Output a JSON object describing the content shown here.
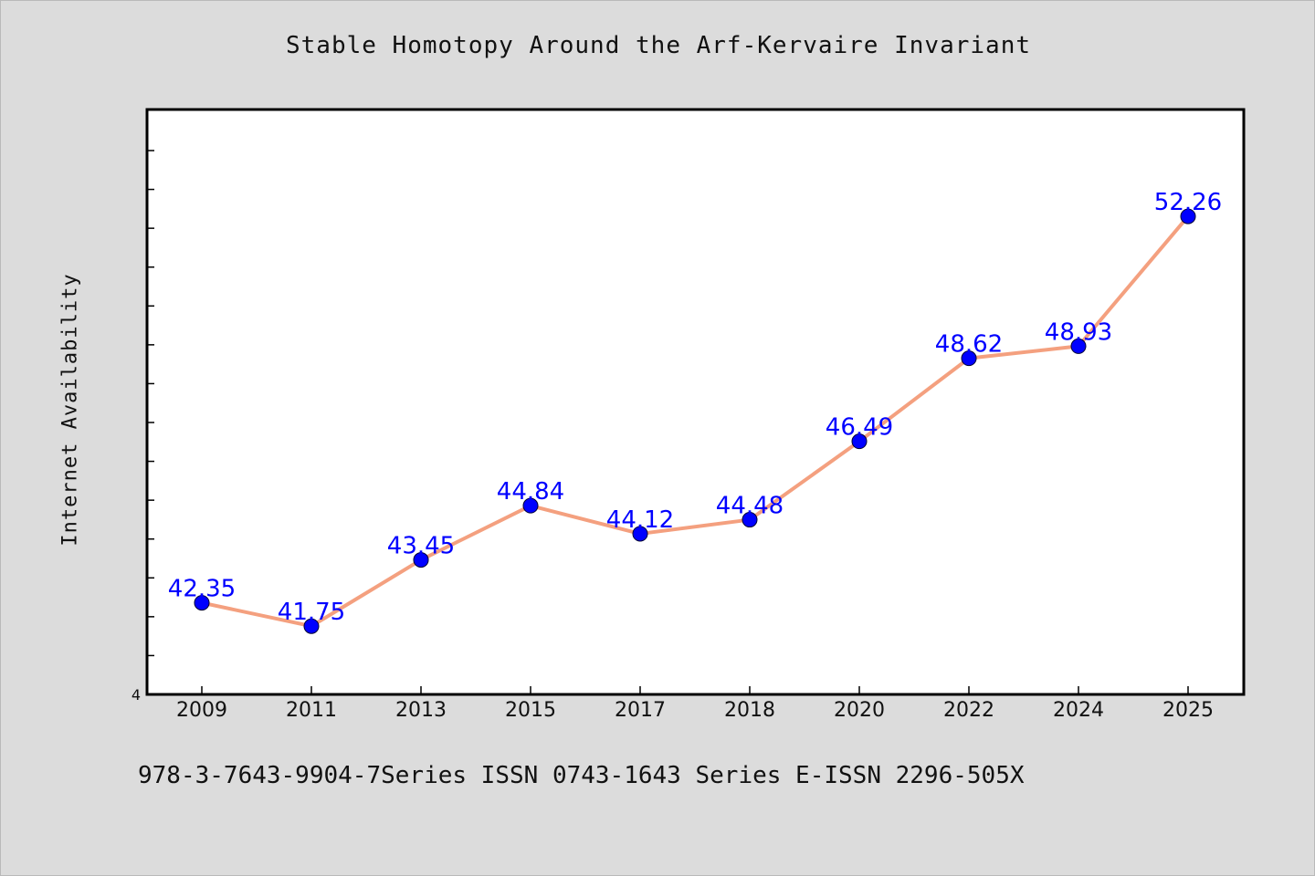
{
  "chart_data": {
    "type": "line",
    "title": "Stable Homotopy Around the Arf-Kervaire Invariant",
    "xlabel": "",
    "ylabel": "Internet Availability",
    "categories": [
      "2009",
      "2011",
      "2013",
      "2015",
      "2017",
      "2018",
      "2020",
      "2022",
      "2024",
      "2025"
    ],
    "series": [
      {
        "values": [
          42.35,
          41.75,
          43.45,
          44.84,
          44.12,
          44.48,
          46.49,
          48.62,
          48.93,
          52.26
        ],
        "labels": [
          "42.35",
          "41.75",
          "43.45",
          "44.84",
          "44.12",
          "44.48",
          "46.49",
          "48.62",
          "48.93",
          "52.26"
        ],
        "line_color": "#f4a07f",
        "marker_color": "#0000ff"
      }
    ],
    "ylim": [
      40,
      55
    ],
    "y_tick_label": "4",
    "grid": false,
    "legend": "none"
  },
  "footer": "978-3-7643-9904-7Series ISSN 0743-1643 Series E-ISSN 2296-505X",
  "colors": {
    "background": "#dcdcdc",
    "plot_background": "#ffffff",
    "line": "#f4a07f",
    "marker": "#0000ff",
    "data_label": "#0000ff"
  }
}
